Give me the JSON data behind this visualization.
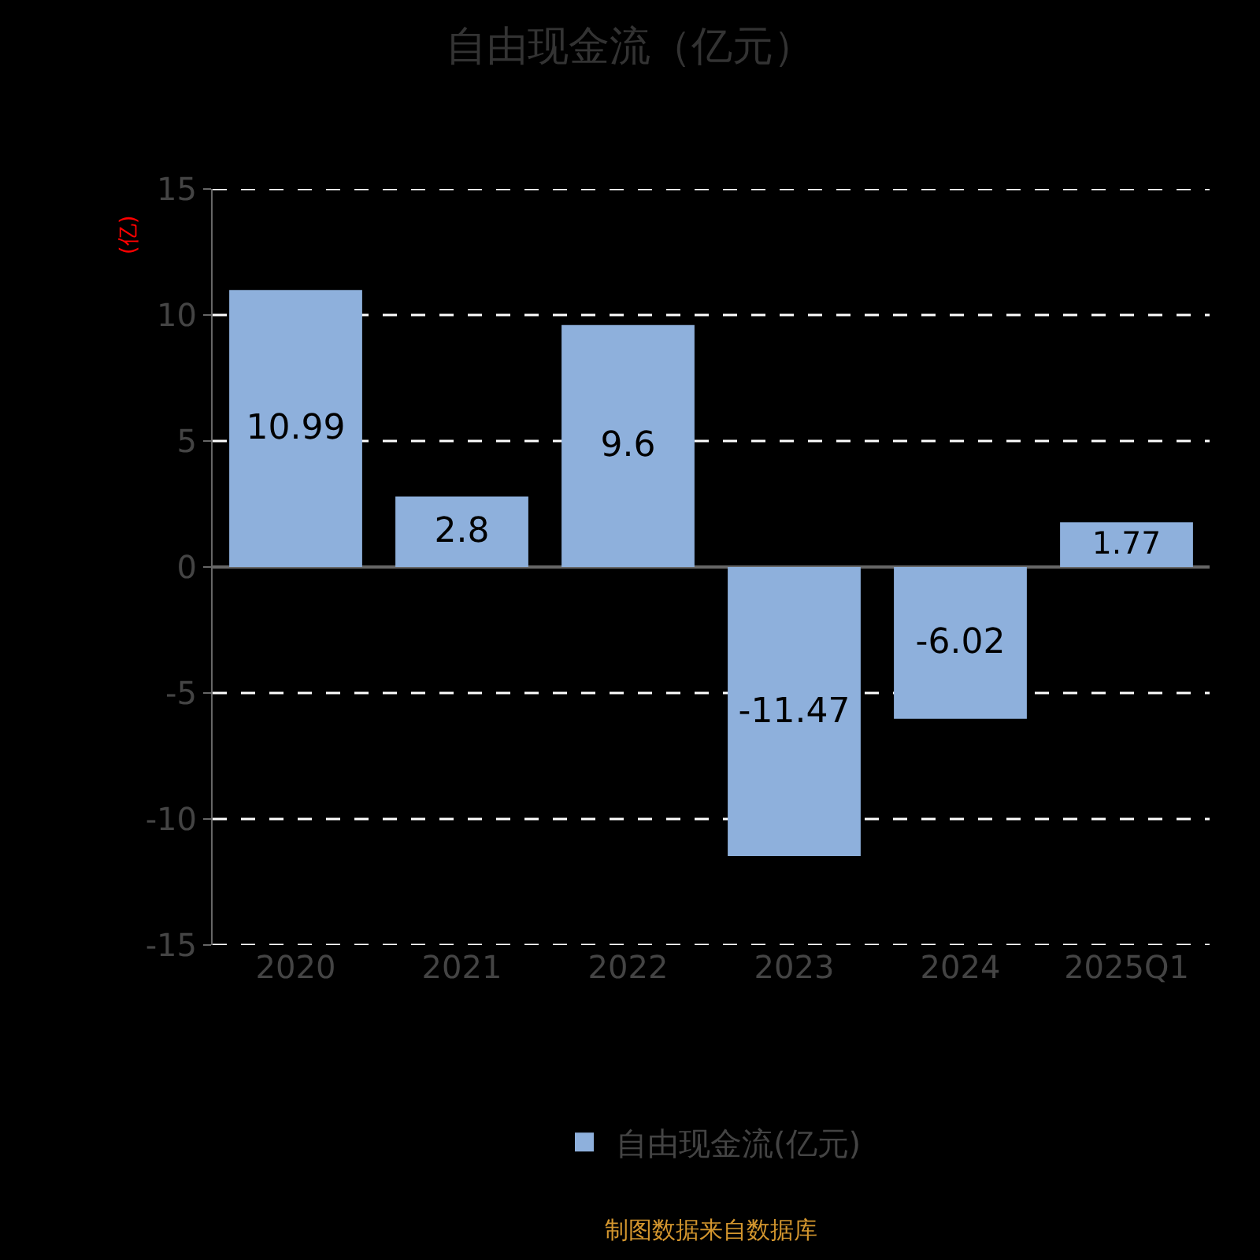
{
  "chart_data": {
    "type": "bar",
    "title": "自由现金流（亿元）",
    "ylabel": "(亿)",
    "categories": [
      "2020",
      "2021",
      "2022",
      "2023",
      "2024",
      "2025Q1"
    ],
    "series": [
      {
        "name": "自由现金流(亿元)",
        "color": "#8eb0dc",
        "values": [
          10.99,
          2.8,
          9.6,
          -11.47,
          -6.02,
          1.77
        ]
      }
    ],
    "ylim": [
      -15,
      15
    ],
    "yticks": [
      -15,
      -10,
      -5,
      0,
      5,
      10,
      15
    ],
    "grid": "y",
    "legend": "bottom",
    "data_labels": true,
    "annotations": [
      "制图数据来自数据库"
    ]
  }
}
